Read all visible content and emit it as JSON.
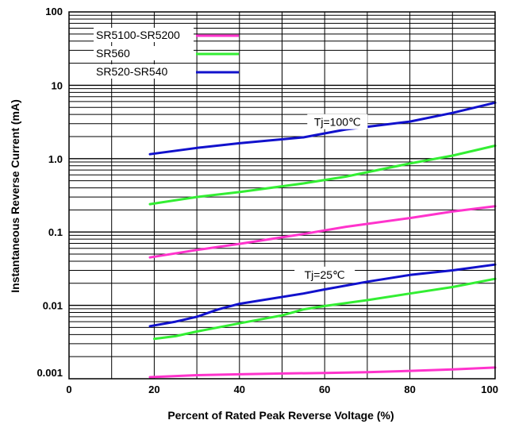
{
  "chart_data": {
    "type": "line",
    "title": "",
    "xlabel": "Percent of Rated Peak Reverse Voltage (%)",
    "ylabel": "Instantaneous Reverse Current (mA)",
    "x_scale": "linear",
    "y_scale": "log",
    "xlim": [
      0,
      100
    ],
    "ylim": [
      0.001,
      100
    ],
    "grid": true,
    "x_ticks": [
      {
        "value": 0,
        "label": "0"
      },
      {
        "value": 20,
        "label": "20"
      },
      {
        "value": 40,
        "label": "40"
      },
      {
        "value": 60,
        "label": "60"
      },
      {
        "value": 80,
        "label": "80"
      },
      {
        "value": 100,
        "label": "100"
      }
    ],
    "y_ticks": [
      {
        "value": 0.001,
        "label": "0.001"
      },
      {
        "value": 0.01,
        "label": "0.01"
      },
      {
        "value": 0.1,
        "label": "0.1"
      },
      {
        "value": 1,
        "label": "1.0"
      },
      {
        "value": 10,
        "label": "10"
      },
      {
        "value": 100,
        "label": "100"
      }
    ],
    "legend": {
      "placement": "top-left",
      "entries": [
        {
          "name": "SR5100-SR5200",
          "color": "#ff33cc"
        },
        {
          "name": "SR560",
          "color": "#33ee33"
        },
        {
          "name": "SR520-SR540",
          "color": "#1111cc"
        }
      ]
    },
    "annotations": [
      {
        "text": "Tj=100℃",
        "x": 63,
        "y": 3.0
      },
      {
        "text": "Tj=25℃",
        "x": 60,
        "y": 0.025
      }
    ],
    "series": [
      {
        "name": "SR520-SR540",
        "group": "Tj=100℃",
        "color": "#1111cc",
        "x": [
          19,
          30,
          40,
          55,
          65,
          80,
          90,
          100
        ],
        "y": [
          1.15,
          1.4,
          1.62,
          1.95,
          2.5,
          3.2,
          4.2,
          5.8
        ]
      },
      {
        "name": "SR560",
        "group": "Tj=100℃",
        "color": "#33ee33",
        "x": [
          19,
          30,
          40,
          55,
          65,
          80,
          90,
          100
        ],
        "y": [
          0.24,
          0.3,
          0.35,
          0.46,
          0.57,
          0.86,
          1.1,
          1.5
        ]
      },
      {
        "name": "SR5100-SR5200",
        "group": "Tj=100℃",
        "color": "#ff33cc",
        "x": [
          19,
          30,
          40,
          55,
          65,
          80,
          90,
          100
        ],
        "y": [
          0.045,
          0.057,
          0.069,
          0.094,
          0.118,
          0.155,
          0.19,
          0.225
        ]
      },
      {
        "name": "SR520-SR540",
        "group": "Tj=25℃",
        "color": "#1111cc",
        "x": [
          19,
          25,
          30,
          35,
          40,
          55,
          60,
          70,
          80,
          90,
          100
        ],
        "y": [
          0.0052,
          0.006,
          0.007,
          0.0088,
          0.0105,
          0.0145,
          0.0165,
          0.021,
          0.026,
          0.03,
          0.036
        ]
      },
      {
        "name": "SR560",
        "group": "Tj=25℃",
        "color": "#33ee33",
        "x": [
          20,
          25,
          30,
          40,
          50,
          55,
          60,
          70,
          80,
          90,
          100
        ],
        "y": [
          0.0035,
          0.0038,
          0.0044,
          0.0057,
          0.0073,
          0.0088,
          0.0098,
          0.0118,
          0.0145,
          0.0178,
          0.023
        ]
      },
      {
        "name": "SR5100-SR5200",
        "group": "Tj=25℃",
        "color": "#ff33cc",
        "x": [
          19,
          30,
          40,
          50,
          60,
          70,
          80,
          90,
          100
        ],
        "y": [
          0.00105,
          0.00112,
          0.00115,
          0.00118,
          0.0012,
          0.00123,
          0.00128,
          0.00134,
          0.00142
        ]
      }
    ]
  }
}
